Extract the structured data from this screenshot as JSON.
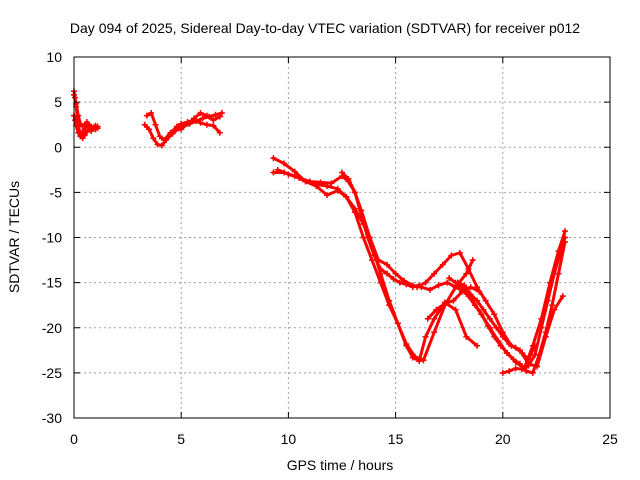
{
  "chart_data": {
    "type": "scatter",
    "title": "Day 094 of 2025, Sidereal Day-to-day VTEC variation (SDTVAR) for receiver p012",
    "xlabel": "GPS time / hours",
    "ylabel": "SDTVAR / TECUs",
    "xlim": [
      0,
      25
    ],
    "ylim": [
      -30,
      10
    ],
    "x_ticks": [
      0,
      5,
      10,
      15,
      20,
      25
    ],
    "y_ticks": [
      -30,
      -25,
      -20,
      -15,
      -10,
      -5,
      0,
      5,
      10
    ],
    "grid": true,
    "legend": "none",
    "marker": "plus",
    "color": "#ff0000",
    "series": [
      {
        "x": [
          0.0,
          0.05,
          0.1,
          0.15,
          0.2,
          0.25,
          0.3,
          0.4,
          0.5,
          0.6,
          0.7,
          0.8,
          0.9,
          1.0,
          1.1
        ],
        "y": [
          6.2,
          5.5,
          4.5,
          3.5,
          2.6,
          1.8,
          1.3,
          1.0,
          1.3,
          1.7,
          2.0,
          1.8,
          2.2,
          2.0,
          2.3
        ]
      },
      {
        "x": [
          0.0,
          0.05,
          0.1,
          0.2,
          0.3,
          0.4,
          0.5,
          0.6,
          0.7,
          0.8,
          0.9,
          1.0,
          1.1
        ],
        "y": [
          3.5,
          3.0,
          2.4,
          1.6,
          1.2,
          1.5,
          2.0,
          2.5,
          2.2,
          1.9,
          2.1,
          2.4,
          2.1
        ]
      },
      {
        "x": [
          0.0,
          0.1,
          0.2,
          0.3,
          0.4,
          0.5,
          0.6,
          0.8,
          1.0
        ],
        "y": [
          5.8,
          4.8,
          3.5,
          2.6,
          2.3,
          2.5,
          2.8,
          2.3,
          2.0
        ]
      },
      {
        "x": [
          3.3,
          3.5,
          3.7,
          3.9,
          4.1,
          4.3,
          4.6,
          4.9,
          5.1,
          5.4,
          5.7,
          6.0,
          6.3,
          6.6,
          6.9
        ],
        "y": [
          2.5,
          2.0,
          1.0,
          0.3,
          0.2,
          0.8,
          1.5,
          2.1,
          2.4,
          2.6,
          2.9,
          3.2,
          3.4,
          3.6,
          3.8
        ]
      },
      {
        "x": [
          3.4,
          3.6,
          3.8,
          4.0,
          4.2,
          4.5,
          4.8,
          5.0,
          5.3,
          5.6,
          5.9,
          6.2,
          6.5,
          6.8
        ],
        "y": [
          3.5,
          3.8,
          2.5,
          1.2,
          0.8,
          1.6,
          2.3,
          2.6,
          2.8,
          3.0,
          2.7,
          2.5,
          2.4,
          1.6
        ]
      },
      {
        "x": [
          5.0,
          5.3,
          5.6,
          5.9,
          6.2,
          6.5,
          6.8
        ],
        "y": [
          2.0,
          2.6,
          3.2,
          3.8,
          3.5,
          3.0,
          3.4
        ]
      },
      {
        "x": [
          9.3,
          9.8,
          10.3,
          10.8,
          11.3,
          11.8,
          12.3,
          12.7,
          13.1,
          13.5,
          13.9,
          14.3,
          14.7,
          15.1,
          15.5,
          15.8,
          16.1,
          16.4,
          16.8,
          17.3,
          17.8,
          18.3,
          18.8
        ],
        "y": [
          -1.2,
          -1.8,
          -2.7,
          -3.8,
          -4.1,
          -4.3,
          -4.6,
          -5.5,
          -6.8,
          -8.5,
          -11.0,
          -14.0,
          -17.0,
          -19.5,
          -22.0,
          -23.3,
          -23.7,
          -21.0,
          -19.0,
          -17.2,
          -18.0,
          -21.0,
          -22.0
        ]
      },
      {
        "x": [
          9.3,
          9.8,
          10.3,
          10.8,
          11.3,
          11.8,
          12.3,
          12.7,
          13.1,
          13.5,
          13.9,
          14.3,
          14.7,
          15.1,
          15.5,
          15.9,
          16.3,
          16.8,
          17.3,
          17.8,
          18.3,
          18.6
        ],
        "y": [
          -2.8,
          -2.8,
          -3.2,
          -3.8,
          -4.3,
          -5.3,
          -4.8,
          -5.5,
          -7.2,
          -10.0,
          -12.5,
          -15.0,
          -17.5,
          -19.5,
          -21.8,
          -23.2,
          -23.6,
          -20.5,
          -17.5,
          -15.5,
          -14.0,
          -12.5
        ]
      },
      {
        "x": [
          9.5,
          10.0,
          10.5,
          11.0,
          11.5,
          12.0,
          12.5,
          12.8,
          13.1,
          13.4,
          13.8,
          14.2,
          14.6,
          15.0,
          15.4,
          15.8,
          16.2,
          16.6,
          17.0,
          17.4,
          17.8,
          18.2,
          18.6,
          19.0,
          19.4,
          19.8,
          20.2,
          20.6,
          21.0,
          21.4,
          21.8,
          22.2,
          22.6,
          22.9
        ],
        "y": [
          -2.5,
          -3.0,
          -3.4,
          -3.8,
          -3.9,
          -4.0,
          -3.2,
          -3.8,
          -5.0,
          -7.0,
          -10.0,
          -12.5,
          -13.0,
          -14.0,
          -14.8,
          -15.3,
          -15.5,
          -15.8,
          -15.3,
          -15.0,
          -15.5,
          -16.0,
          -17.0,
          -18.5,
          -20.0,
          -21.5,
          -22.8,
          -23.8,
          -24.5,
          -22.0,
          -19.0,
          -15.0,
          -11.5,
          -9.3
        ]
      },
      {
        "x": [
          12.5,
          12.8,
          13.1,
          13.4,
          13.7,
          14.0,
          14.3,
          14.6,
          14.9,
          15.2,
          15.5,
          15.8,
          16.1
        ],
        "y": [
          -2.8,
          -3.5,
          -5.0,
          -7.5,
          -10.0,
          -12.0,
          -13.5,
          -14.0,
          -14.6,
          -15.0,
          -15.2,
          -15.5,
          -15.3
        ]
      },
      {
        "x": [
          16.0,
          16.4,
          16.8,
          17.2,
          17.6,
          18.0,
          18.4,
          18.8,
          19.2,
          19.6,
          20.0,
          20.4,
          20.8,
          21.2,
          21.6,
          22.0,
          22.4,
          22.8
        ],
        "y": [
          -15.5,
          -15.0,
          -14.0,
          -13.0,
          -12.0,
          -11.7,
          -13.5,
          -15.5,
          -17.0,
          -18.5,
          -20.5,
          -22.0,
          -22.5,
          -24.0,
          -24.3,
          -21.0,
          -18.0,
          -16.5
        ]
      },
      {
        "x": [
          17.5,
          17.8,
          18.1,
          18.4,
          18.7,
          19.0,
          19.3,
          19.6,
          19.9,
          20.2,
          20.5,
          20.8,
          21.1,
          21.4,
          21.7,
          22.0,
          22.3,
          22.6,
          22.9
        ],
        "y": [
          -14.5,
          -15.0,
          -15.5,
          -16.5,
          -17.5,
          -18.5,
          -19.8,
          -21.0,
          -22.0,
          -22.8,
          -23.5,
          -24.0,
          -24.8,
          -25.0,
          -23.0,
          -20.5,
          -17.5,
          -14.0,
          -10.5
        ]
      },
      {
        "x": [
          20.0,
          20.3,
          20.6,
          20.9,
          21.2,
          21.5,
          21.8,
          22.1,
          22.4,
          22.7,
          22.9
        ],
        "y": [
          -25.0,
          -24.8,
          -24.5,
          -24.6,
          -24.2,
          -23.0,
          -20.0,
          -17.0,
          -14.0,
          -11.5,
          -10.0
        ]
      },
      {
        "x": [
          16.5,
          16.9,
          17.3,
          17.7,
          18.1,
          18.5,
          18.9
        ],
        "y": [
          -19.0,
          -18.0,
          -17.3,
          -17.0,
          -16.0,
          -15.5,
          -16.0
        ]
      },
      {
        "x": [
          17.9,
          18.2,
          18.5,
          18.8,
          19.1,
          19.4,
          19.7,
          20.0,
          20.3,
          20.6,
          20.9,
          21.2,
          21.5
        ],
        "y": [
          -15.0,
          -15.3,
          -16.3,
          -17.0,
          -18.0,
          -19.0,
          -20.0,
          -21.0,
          -21.8,
          -22.2,
          -22.8,
          -23.5,
          -22.0
        ]
      }
    ]
  }
}
